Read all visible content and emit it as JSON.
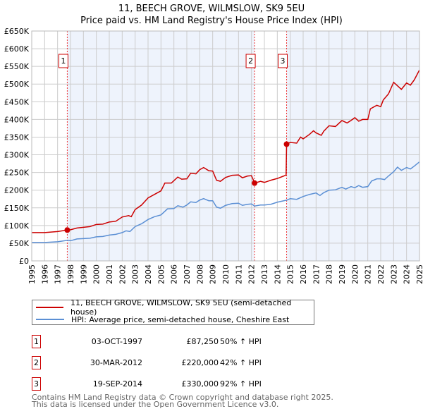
{
  "chart_data": {
    "type": "line",
    "title": "11, BEECH GROVE, WILMSLOW, SK9 5EU",
    "subtitle": "Price paid vs. HM Land Registry's House Price Index (HPI)",
    "xlim": [
      1995,
      2025
    ],
    "ylim": [
      0,
      650000
    ],
    "x_ticks": [
      "1995",
      "1996",
      "1997",
      "1998",
      "1999",
      "2000",
      "2001",
      "2002",
      "2003",
      "2004",
      "2005",
      "2006",
      "2007",
      "2008",
      "2009",
      "2010",
      "2011",
      "2012",
      "2013",
      "2014",
      "2015",
      "2016",
      "2017",
      "2018",
      "2019",
      "2020",
      "2021",
      "2022",
      "2023",
      "2024",
      "2025"
    ],
    "y_ticks": [
      "£0",
      "£50K",
      "£100K",
      "£150K",
      "£200K",
      "£250K",
      "£300K",
      "£350K",
      "£400K",
      "£450K",
      "£500K",
      "£550K",
      "£600K",
      "£650K"
    ],
    "grid": true,
    "series": [
      {
        "name": "11, BEECH GROVE, WILMSLOW, SK9 5EU (semi-detached house)",
        "color": "#cc0000",
        "points": [
          [
            1995,
            80
          ],
          [
            1996,
            80
          ],
          [
            1997,
            83
          ],
          [
            1997.75,
            87.25
          ],
          [
            1998,
            88
          ],
          [
            1998.5,
            93
          ],
          [
            1999,
            95
          ],
          [
            1999.5,
            97
          ],
          [
            2000,
            103
          ],
          [
            2000.5,
            104
          ],
          [
            2001,
            110
          ],
          [
            2001.5,
            112
          ],
          [
            2002,
            124
          ],
          [
            2002.5,
            128
          ],
          [
            2002.7,
            125
          ],
          [
            2003,
            145
          ],
          [
            2003.5,
            158
          ],
          [
            2004,
            178
          ],
          [
            2004.5,
            188
          ],
          [
            2005,
            198
          ],
          [
            2005.3,
            220
          ],
          [
            2005.8,
            220
          ],
          [
            2006.3,
            237
          ],
          [
            2006.6,
            231
          ],
          [
            2007,
            232
          ],
          [
            2007.3,
            248
          ],
          [
            2007.7,
            246
          ],
          [
            2008,
            258
          ],
          [
            2008.3,
            264
          ],
          [
            2008.7,
            255
          ],
          [
            2009,
            254
          ],
          [
            2009.3,
            228
          ],
          [
            2009.6,
            225
          ],
          [
            2010,
            236
          ],
          [
            2010.5,
            242
          ],
          [
            2011,
            243
          ],
          [
            2011.3,
            235
          ],
          [
            2011.7,
            240
          ],
          [
            2012,
            241
          ],
          [
            2012.25,
            220
          ],
          [
            2012.7,
            225
          ],
          [
            2013,
            222
          ],
          [
            2013.5,
            228
          ],
          [
            2014,
            233
          ],
          [
            2014.5,
            240
          ],
          [
            2014.68,
            243
          ],
          [
            2014.72,
            330
          ],
          [
            2015,
            335
          ],
          [
            2015.5,
            333
          ],
          [
            2015.8,
            350
          ],
          [
            2016,
            345
          ],
          [
            2016.5,
            358
          ],
          [
            2016.8,
            368
          ],
          [
            2017,
            362
          ],
          [
            2017.4,
            355
          ],
          [
            2017.6,
            367
          ],
          [
            2018,
            382
          ],
          [
            2018.5,
            380
          ],
          [
            2019,
            397
          ],
          [
            2019.4,
            390
          ],
          [
            2019.7,
            397
          ],
          [
            2020,
            405
          ],
          [
            2020.3,
            395
          ],
          [
            2020.6,
            400
          ],
          [
            2021,
            400
          ],
          [
            2021.2,
            430
          ],
          [
            2021.7,
            440
          ],
          [
            2022,
            436
          ],
          [
            2022.2,
            455
          ],
          [
            2022.6,
            472
          ],
          [
            2023,
            505
          ],
          [
            2023.3,
            495
          ],
          [
            2023.6,
            485
          ],
          [
            2024,
            503
          ],
          [
            2024.3,
            497
          ],
          [
            2024.6,
            512
          ],
          [
            2025,
            540
          ]
        ]
      },
      {
        "name": "HPI: Average price, semi-detached house, Cheshire East",
        "color": "#5b8fd4",
        "points": [
          [
            1995,
            52
          ],
          [
            1996,
            52
          ],
          [
            1997,
            54
          ],
          [
            1997.75,
            58
          ],
          [
            1998,
            57
          ],
          [
            1998.5,
            62
          ],
          [
            1999,
            63
          ],
          [
            1999.5,
            64
          ],
          [
            2000,
            68
          ],
          [
            2000.5,
            69
          ],
          [
            2001,
            73
          ],
          [
            2001.5,
            75
          ],
          [
            2002,
            80
          ],
          [
            2002.3,
            85
          ],
          [
            2002.6,
            83
          ],
          [
            2003,
            97
          ],
          [
            2003.5,
            105
          ],
          [
            2004,
            117
          ],
          [
            2004.5,
            125
          ],
          [
            2005,
            130
          ],
          [
            2005.5,
            147
          ],
          [
            2006,
            148
          ],
          [
            2006.3,
            156
          ],
          [
            2006.7,
            152
          ],
          [
            2007,
            158
          ],
          [
            2007.3,
            167
          ],
          [
            2007.7,
            165
          ],
          [
            2008,
            172
          ],
          [
            2008.3,
            176
          ],
          [
            2008.7,
            170
          ],
          [
            2009,
            170
          ],
          [
            2009.3,
            152
          ],
          [
            2009.6,
            149
          ],
          [
            2010,
            157
          ],
          [
            2010.5,
            162
          ],
          [
            2011,
            163
          ],
          [
            2011.3,
            157
          ],
          [
            2011.7,
            160
          ],
          [
            2012,
            161
          ],
          [
            2012.25,
            155
          ],
          [
            2012.7,
            158
          ],
          [
            2013,
            158
          ],
          [
            2013.5,
            160
          ],
          [
            2014,
            166
          ],
          [
            2014.5,
            170
          ],
          [
            2014.75,
            172
          ],
          [
            2015,
            176
          ],
          [
            2015.5,
            174
          ],
          [
            2016,
            182
          ],
          [
            2016.5,
            188
          ],
          [
            2017,
            192
          ],
          [
            2017.3,
            185
          ],
          [
            2017.6,
            193
          ],
          [
            2018,
            200
          ],
          [
            2018.5,
            201
          ],
          [
            2019,
            208
          ],
          [
            2019.3,
            203
          ],
          [
            2019.7,
            210
          ],
          [
            2020,
            207
          ],
          [
            2020.3,
            213
          ],
          [
            2020.6,
            208
          ],
          [
            2021,
            210
          ],
          [
            2021.3,
            226
          ],
          [
            2021.7,
            232
          ],
          [
            2022,
            232
          ],
          [
            2022.3,
            230
          ],
          [
            2022.6,
            240
          ],
          [
            2023,
            252
          ],
          [
            2023.3,
            265
          ],
          [
            2023.6,
            256
          ],
          [
            2024,
            264
          ],
          [
            2024.3,
            260
          ],
          [
            2024.6,
            268
          ],
          [
            2025,
            280
          ]
        ]
      }
    ],
    "value_unit": "£K",
    "sales": [
      {
        "label": "1",
        "x": 1997.75,
        "value": 87.25,
        "date": "03-OCT-1997",
        "price": "£87,250",
        "hpi": "50% ↑ HPI"
      },
      {
        "label": "2",
        "x": 2012.24,
        "value": 220,
        "date": "30-MAR-2012",
        "price": "£220,000",
        "hpi": "42% ↑ HPI"
      },
      {
        "label": "3",
        "x": 2014.72,
        "value": 330,
        "date": "19-SEP-2014",
        "price": "£330,000",
        "hpi": "92% ↑ HPI"
      }
    ]
  },
  "footer": [
    "Contains HM Land Registry data © Crown copyright and database right 2025.",
    "This data is licensed under the Open Government Licence v3.0."
  ]
}
